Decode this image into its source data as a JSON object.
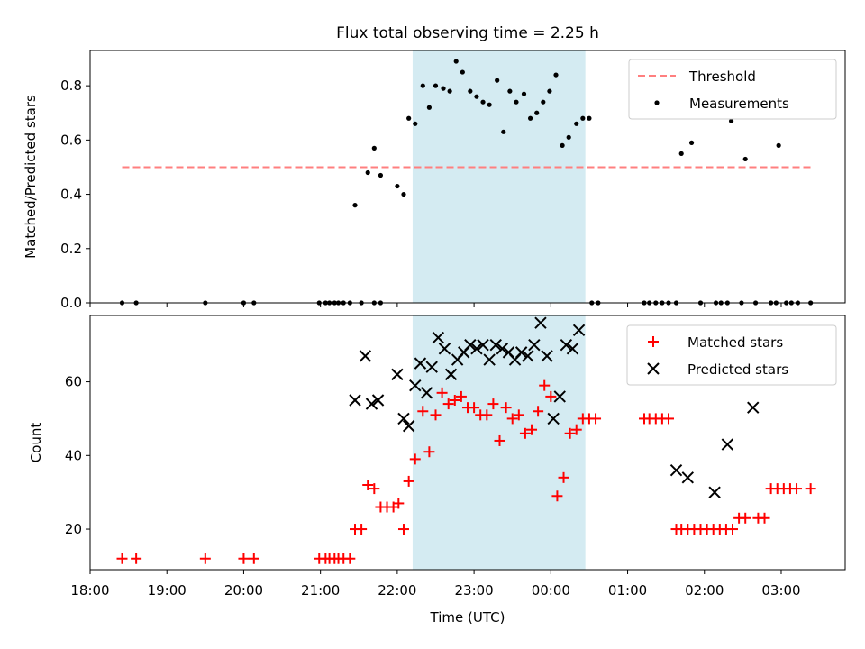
{
  "figure": {
    "title": "Flux total observing time = 2.25 h",
    "xlabel": "Time (UTC)"
  },
  "chart_data": [
    {
      "type": "scatter",
      "ylabel": "Matched/Predicted stars",
      "xlim": [
        "18:00",
        "03:50"
      ],
      "ylim": [
        0,
        0.93
      ],
      "yticks": [
        "0.0",
        "0.2",
        "0.4",
        "0.6",
        "0.8"
      ],
      "shaded_span": {
        "start": "22:12",
        "end": "00:27",
        "color": "#add8e6"
      },
      "legend": {
        "position": "top-right",
        "entries": [
          "Threshold",
          "Measurements"
        ]
      },
      "series": [
        {
          "name": "Threshold",
          "kind": "dashed-line",
          "color": "#ff7f7f",
          "points": [
            [
              "18:25",
              0.5
            ],
            [
              "03:25",
              0.5
            ]
          ]
        },
        {
          "name": "Measurements",
          "kind": "dots",
          "color": "#000000",
          "points": [
            [
              "18:25",
              0.0
            ],
            [
              "18:36",
              0.0
            ],
            [
              "19:30",
              0.0
            ],
            [
              "20:00",
              0.0
            ],
            [
              "20:08",
              0.0
            ],
            [
              "20:59",
              0.0
            ],
            [
              "21:04",
              0.0
            ],
            [
              "21:07",
              0.0
            ],
            [
              "21:11",
              0.0
            ],
            [
              "21:14",
              0.0
            ],
            [
              "21:18",
              0.0
            ],
            [
              "21:23",
              0.0
            ],
            [
              "21:32",
              0.0
            ],
            [
              "21:42",
              0.0
            ],
            [
              "21:47",
              0.0
            ],
            [
              "21:27",
              0.36
            ],
            [
              "21:37",
              0.48
            ],
            [
              "21:42",
              0.57
            ],
            [
              "21:47",
              0.47
            ],
            [
              "22:00",
              0.43
            ],
            [
              "22:05",
              0.4
            ],
            [
              "22:09",
              0.68
            ],
            [
              "22:14",
              0.66
            ],
            [
              "22:20",
              0.8
            ],
            [
              "22:25",
              0.72
            ],
            [
              "22:30",
              0.8
            ],
            [
              "22:36",
              0.79
            ],
            [
              "22:41",
              0.78
            ],
            [
              "22:46",
              0.89
            ],
            [
              "22:51",
              0.85
            ],
            [
              "22:57",
              0.78
            ],
            [
              "23:02",
              0.76
            ],
            [
              "23:07",
              0.74
            ],
            [
              "23:12",
              0.73
            ],
            [
              "23:18",
              0.82
            ],
            [
              "23:23",
              0.63
            ],
            [
              "23:28",
              0.78
            ],
            [
              "23:33",
              0.74
            ],
            [
              "23:39",
              0.77
            ],
            [
              "23:44",
              0.68
            ],
            [
              "23:49",
              0.7
            ],
            [
              "23:54",
              0.74
            ],
            [
              "23:59",
              0.78
            ],
            [
              "00:04",
              0.84
            ],
            [
              "00:09",
              0.58
            ],
            [
              "00:14",
              0.61
            ],
            [
              "00:20",
              0.66
            ],
            [
              "00:25",
              0.68
            ],
            [
              "00:30",
              0.68
            ],
            [
              "00:32",
              0.0
            ],
            [
              "00:37",
              0.0
            ],
            [
              "01:13",
              0.0
            ],
            [
              "01:17",
              0.0
            ],
            [
              "01:22",
              0.0
            ],
            [
              "01:27",
              0.0
            ],
            [
              "01:32",
              0.0
            ],
            [
              "01:38",
              0.0
            ],
            [
              "01:42",
              0.55
            ],
            [
              "01:50",
              0.59
            ],
            [
              "01:57",
              0.0
            ],
            [
              "02:09",
              0.0
            ],
            [
              "02:13",
              0.0
            ],
            [
              "02:18",
              0.0
            ],
            [
              "02:21",
              0.67
            ],
            [
              "02:29",
              0.0
            ],
            [
              "02:32",
              0.53
            ],
            [
              "02:40",
              0.0
            ],
            [
              "02:52",
              0.0
            ],
            [
              "02:56",
              0.0
            ],
            [
              "02:58",
              0.58
            ],
            [
              "03:04",
              0.0
            ],
            [
              "03:08",
              0.0
            ],
            [
              "03:13",
              0.0
            ],
            [
              "03:23",
              0.0
            ]
          ]
        }
      ]
    },
    {
      "type": "scatter",
      "ylabel": "Count",
      "xlim": [
        "18:00",
        "03:50"
      ],
      "ylim": [
        9,
        78
      ],
      "yticks": [
        "20",
        "40",
        "60"
      ],
      "xticks": [
        "18:00",
        "19:00",
        "20:00",
        "21:00",
        "22:00",
        "23:00",
        "00:00",
        "01:00",
        "02:00",
        "03:00"
      ],
      "shaded_span": {
        "start": "22:12",
        "end": "00:27",
        "color": "#add8e6"
      },
      "legend": {
        "position": "top-right",
        "entries": [
          "Matched stars",
          "Predicted stars"
        ]
      },
      "series": [
        {
          "name": "Matched stars",
          "kind": "plus",
          "color": "#ff0000",
          "points": [
            [
              "18:25",
              12
            ],
            [
              "18:36",
              12
            ],
            [
              "19:30",
              12
            ],
            [
              "20:00",
              12
            ],
            [
              "20:08",
              12
            ],
            [
              "20:59",
              12
            ],
            [
              "21:04",
              12
            ],
            [
              "21:07",
              12
            ],
            [
              "21:11",
              12
            ],
            [
              "21:14",
              12
            ],
            [
              "21:18",
              12
            ],
            [
              "21:23",
              12
            ],
            [
              "21:27",
              20
            ],
            [
              "21:32",
              20
            ],
            [
              "21:37",
              32
            ],
            [
              "21:42",
              31
            ],
            [
              "21:47",
              26
            ],
            [
              "21:52",
              26
            ],
            [
              "21:57",
              26
            ],
            [
              "22:01",
              27
            ],
            [
              "22:05",
              20
            ],
            [
              "22:09",
              33
            ],
            [
              "22:14",
              39
            ],
            [
              "22:20",
              52
            ],
            [
              "22:25",
              41
            ],
            [
              "22:30",
              51
            ],
            [
              "22:35",
              57
            ],
            [
              "22:40",
              54
            ],
            [
              "22:45",
              55
            ],
            [
              "22:50",
              56
            ],
            [
              "22:55",
              53
            ],
            [
              "23:00",
              53
            ],
            [
              "23:05",
              51
            ],
            [
              "23:10",
              51
            ],
            [
              "23:15",
              54
            ],
            [
              "23:20",
              44
            ],
            [
              "23:25",
              53
            ],
            [
              "23:30",
              50
            ],
            [
              "23:35",
              51
            ],
            [
              "23:40",
              46
            ],
            [
              "23:45",
              47
            ],
            [
              "23:50",
              52
            ],
            [
              "23:55",
              59
            ],
            [
              "00:00",
              56
            ],
            [
              "00:05",
              29
            ],
            [
              "00:10",
              34
            ],
            [
              "00:15",
              46
            ],
            [
              "00:20",
              47
            ],
            [
              "00:25",
              50
            ],
            [
              "00:30",
              50
            ],
            [
              "00:35",
              50
            ],
            [
              "01:13",
              50
            ],
            [
              "01:17",
              50
            ],
            [
              "01:22",
              50
            ],
            [
              "01:27",
              50
            ],
            [
              "01:32",
              50
            ],
            [
              "01:38",
              20
            ],
            [
              "01:42",
              20
            ],
            [
              "01:47",
              20
            ],
            [
              "01:52",
              20
            ],
            [
              "01:57",
              20
            ],
            [
              "02:02",
              20
            ],
            [
              "02:07",
              20
            ],
            [
              "02:12",
              20
            ],
            [
              "02:17",
              20
            ],
            [
              "02:22",
              20
            ],
            [
              "02:27",
              23
            ],
            [
              "02:32",
              23
            ],
            [
              "02:42",
              23
            ],
            [
              "02:47",
              23
            ],
            [
              "02:52",
              31
            ],
            [
              "02:57",
              31
            ],
            [
              "03:02",
              31
            ],
            [
              "03:07",
              31
            ],
            [
              "03:12",
              31
            ],
            [
              "03:23",
              31
            ]
          ]
        },
        {
          "name": "Predicted stars",
          "kind": "x",
          "color": "#000000",
          "points": [
            [
              "21:27",
              55
            ],
            [
              "21:35",
              67
            ],
            [
              "21:40",
              54
            ],
            [
              "21:45",
              55
            ],
            [
              "22:00",
              62
            ],
            [
              "22:05",
              50
            ],
            [
              "22:09",
              48
            ],
            [
              "22:14",
              59
            ],
            [
              "22:18",
              65
            ],
            [
              "22:23",
              57
            ],
            [
              "22:27",
              64
            ],
            [
              "22:32",
              72
            ],
            [
              "22:37",
              69
            ],
            [
              "22:42",
              62
            ],
            [
              "22:47",
              66
            ],
            [
              "22:52",
              68
            ],
            [
              "22:57",
              70
            ],
            [
              "23:02",
              69
            ],
            [
              "23:07",
              70
            ],
            [
              "23:12",
              66
            ],
            [
              "23:17",
              70
            ],
            [
              "23:22",
              69
            ],
            [
              "23:27",
              68
            ],
            [
              "23:32",
              66
            ],
            [
              "23:37",
              68
            ],
            [
              "23:42",
              67
            ],
            [
              "23:47",
              70
            ],
            [
              "23:52",
              76
            ],
            [
              "23:57",
              67
            ],
            [
              "00:02",
              50
            ],
            [
              "00:07",
              56
            ],
            [
              "00:12",
              70
            ],
            [
              "00:17",
              69
            ],
            [
              "00:22",
              74
            ],
            [
              "01:38",
              36
            ],
            [
              "01:47",
              34
            ],
            [
              "02:08",
              30
            ],
            [
              "02:18",
              43
            ],
            [
              "02:38",
              53
            ]
          ]
        }
      ]
    }
  ]
}
